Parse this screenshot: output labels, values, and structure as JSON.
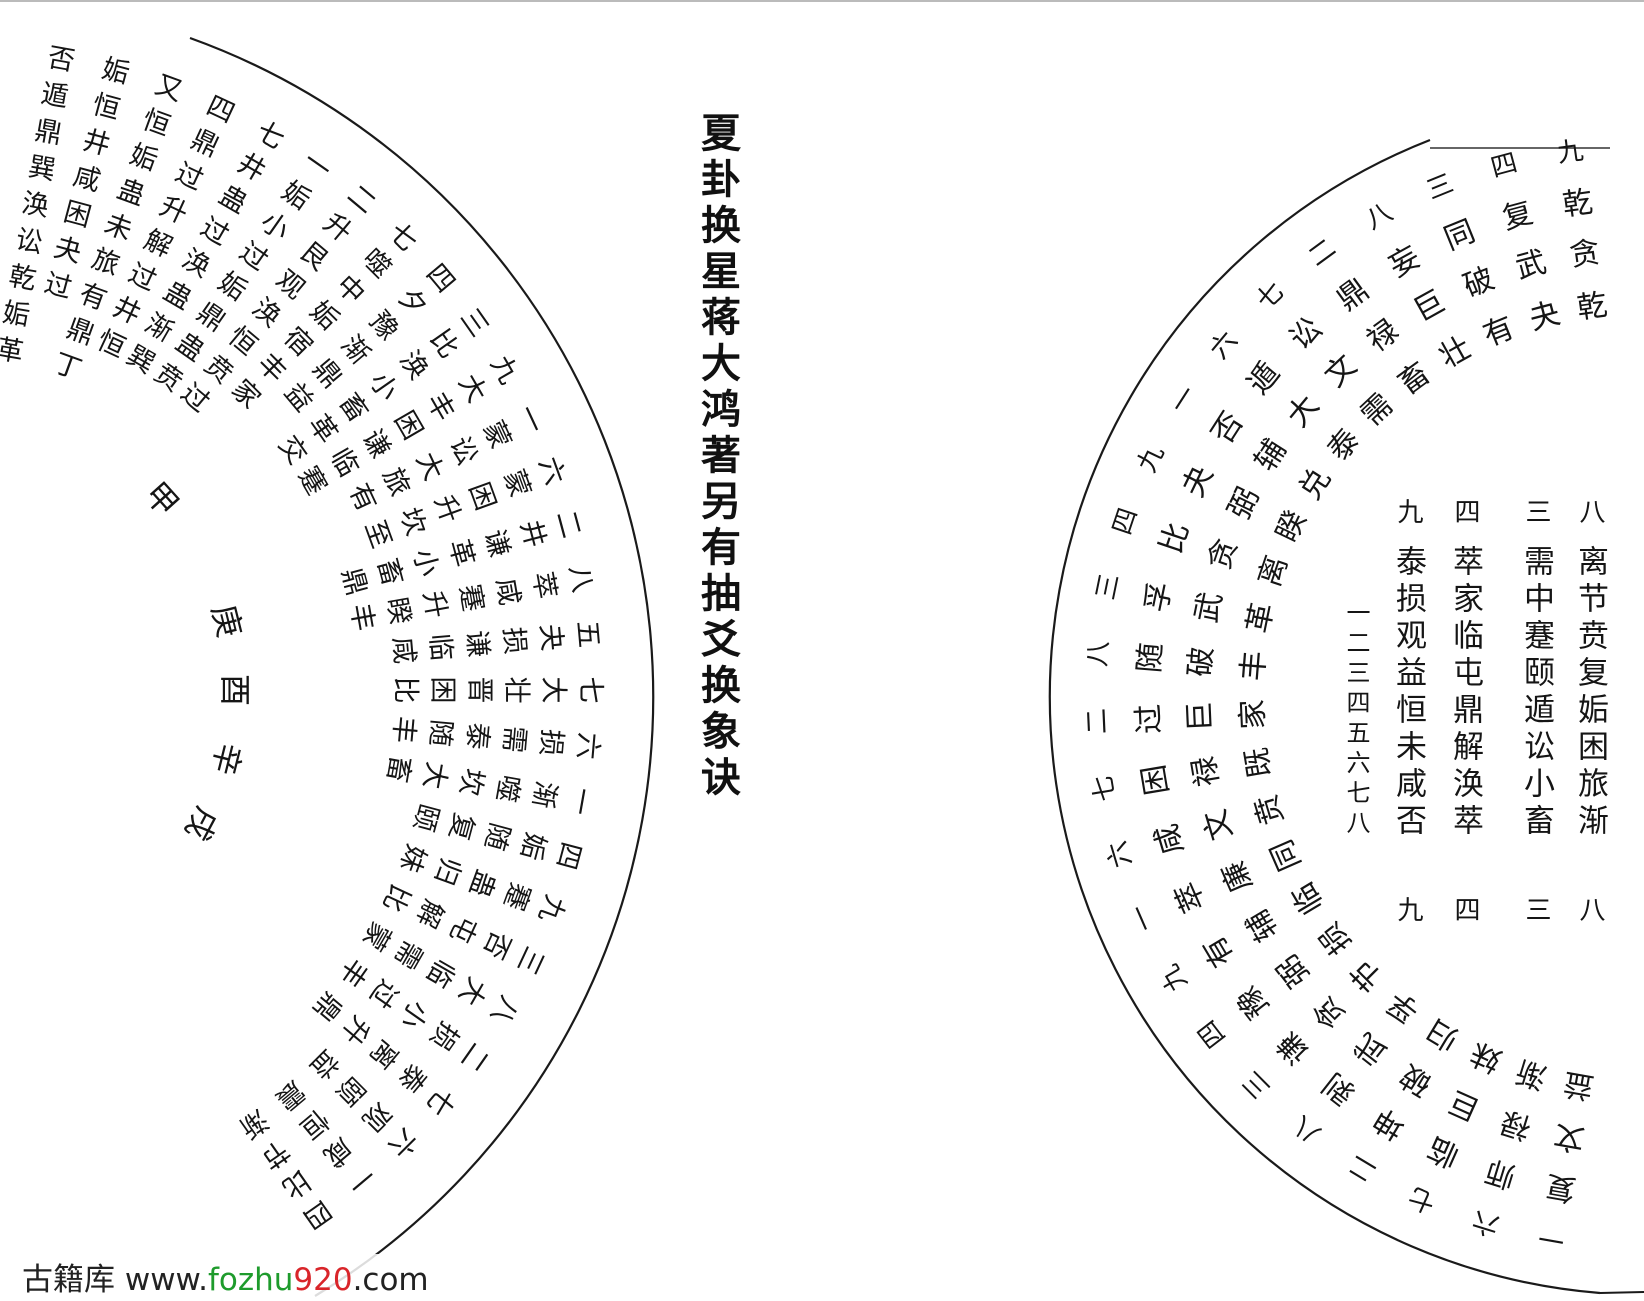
{
  "title": "夏卦换星蒋大鸿著另有抽爻换象诀",
  "watermark": {
    "prefix": "古籍库 www.",
    "green": "fozhu",
    "red": "920",
    "suffix": ".com",
    "green_color": "#1e9b2c",
    "red_color": "#d9252a"
  },
  "left_wheel": {
    "columns": [
      "否遁鼎巽涣讼乾姤革",
      "姤恒井咸困夬过",
      "又恒姤蛊未旅有鼎丁",
      "四鼎过升解过井恒",
      "七井蛊过涣蛊渐巽",
      "一姤小过姤鼎蛊贲",
      "二升艮观涣恒贲过",
      "七噬中姤宿丰家",
      "四夕豫渐鼎益",
      "三比涣小畜革交",
      "九大丰困谦临蹇",
      "一蒙讼大旅有",
      "六蒙困升坎至",
      "二井谦革小畜鼎",
      "八萃咸蹇升睽丰",
      "五夬损谦临咸",
      "七大壮晋困比",
      "六损需泰随丰",
      "一渐噬坎大畜",
      "四姤随复颐",
      "九蹇蛊归妹",
      "三否屯解比",
      "八大临需蒙",
      "二损小过丰",
      "七泰离升鼎",
      "六观颐益",
      "一咸恒震",
      "四比节渐"
    ],
    "mountains": [
      "甲",
      "庚",
      "酉",
      "辛",
      "戌"
    ]
  },
  "right_wheel": {
    "numbers": "九四三八二七六一九四三八二七六一九四三八二七六一",
    "ring1": "乾复同妄鼎讼遁否夬比孚随过困咸萃有豫谦剥坤临师复",
    "ring2": "贪武破巨禄文大辅弼贪武破巨禄文廉辅弼贪武破巨禄文",
    "ring3": "乾夬有壮畜需泰兑睽离革丰家既贲同临损节孚归妹渐益"
  },
  "inner_table": {
    "columns": [
      {
        "head": "八",
        "body": "离节贲复姤困旅渐",
        "tail": "八"
      },
      {
        "head": "三",
        "body": "需中蹇颐遁讼小畜",
        "tail": "三"
      },
      {
        "head": "四",
        "body": "萃家临屯鼎解涣萃",
        "tail": "四"
      },
      {
        "head": "九",
        "body": "泰损观益恒未咸否",
        "tail": "九"
      }
    ],
    "index": "一二三四五六七八"
  }
}
